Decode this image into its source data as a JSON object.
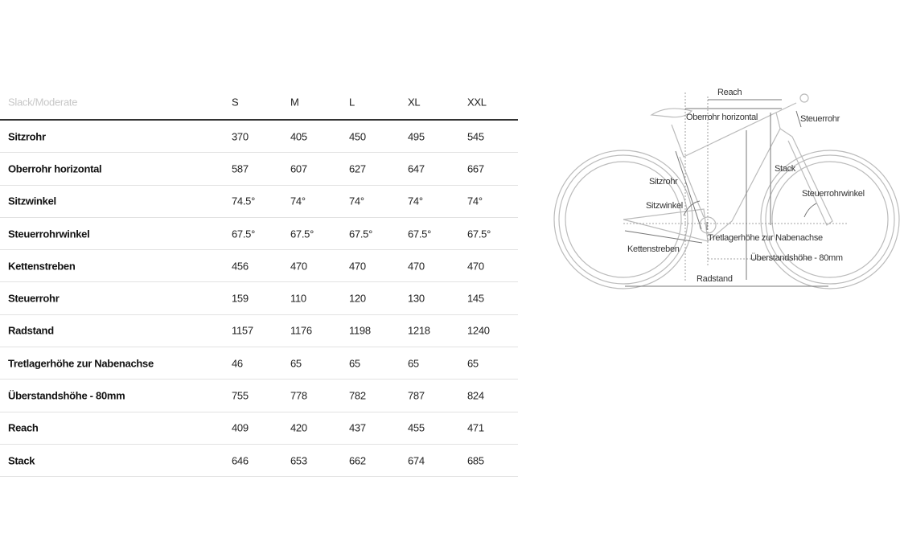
{
  "table": {
    "header": {
      "label": "Slack/Moderate",
      "sizes": [
        "S",
        "M",
        "L",
        "XL",
        "XXL"
      ]
    },
    "rows": [
      {
        "label": "Sitzrohr",
        "values": [
          "370",
          "405",
          "450",
          "495",
          "545"
        ]
      },
      {
        "label": "Oberrohr horizontal",
        "values": [
          "587",
          "607",
          "627",
          "647",
          "667"
        ]
      },
      {
        "label": "Sitzwinkel",
        "values": [
          "74.5°",
          "74°",
          "74°",
          "74°",
          "74°"
        ]
      },
      {
        "label": "Steuerrohrwinkel",
        "values": [
          "67.5°",
          "67.5°",
          "67.5°",
          "67.5°",
          "67.5°"
        ]
      },
      {
        "label": "Kettenstreben",
        "values": [
          "456",
          "470",
          "470",
          "470",
          "470"
        ]
      },
      {
        "label": "Steuerrohr",
        "values": [
          "159",
          "110",
          "120",
          "130",
          "145"
        ]
      },
      {
        "label": "Radstand",
        "values": [
          "1157",
          "1176",
          "1198",
          "1218",
          "1240"
        ]
      },
      {
        "label": "Tretlagerhöhe zur Nabenachse",
        "values": [
          "46",
          "65",
          "65",
          "65",
          "65"
        ]
      },
      {
        "label": "Überstandshöhe - 80mm",
        "values": [
          "755",
          "778",
          "782",
          "787",
          "824"
        ]
      },
      {
        "label": "Reach",
        "values": [
          "409",
          "420",
          "437",
          "455",
          "471"
        ]
      },
      {
        "label": "Stack",
        "values": [
          "646",
          "653",
          "662",
          "674",
          "685"
        ]
      }
    ]
  },
  "diagram": {
    "labels": {
      "reach": "Reach",
      "oberrohr": "Oberrohr horizontal",
      "steuerrohr": "Steuerrohr",
      "stack": "Stack",
      "sitzrohr": "Sitzrohr",
      "steuerrohrwinkel": "Steuerrohrwinkel",
      "sitzwinkel": "Sitzwinkel",
      "tretlager": "Tretlagerhöhe zur Nabenachse",
      "kettenstreben": "Kettenstreben",
      "ueberstand": "Überstandshöhe - 80mm",
      "radstand": "Radstand"
    }
  }
}
